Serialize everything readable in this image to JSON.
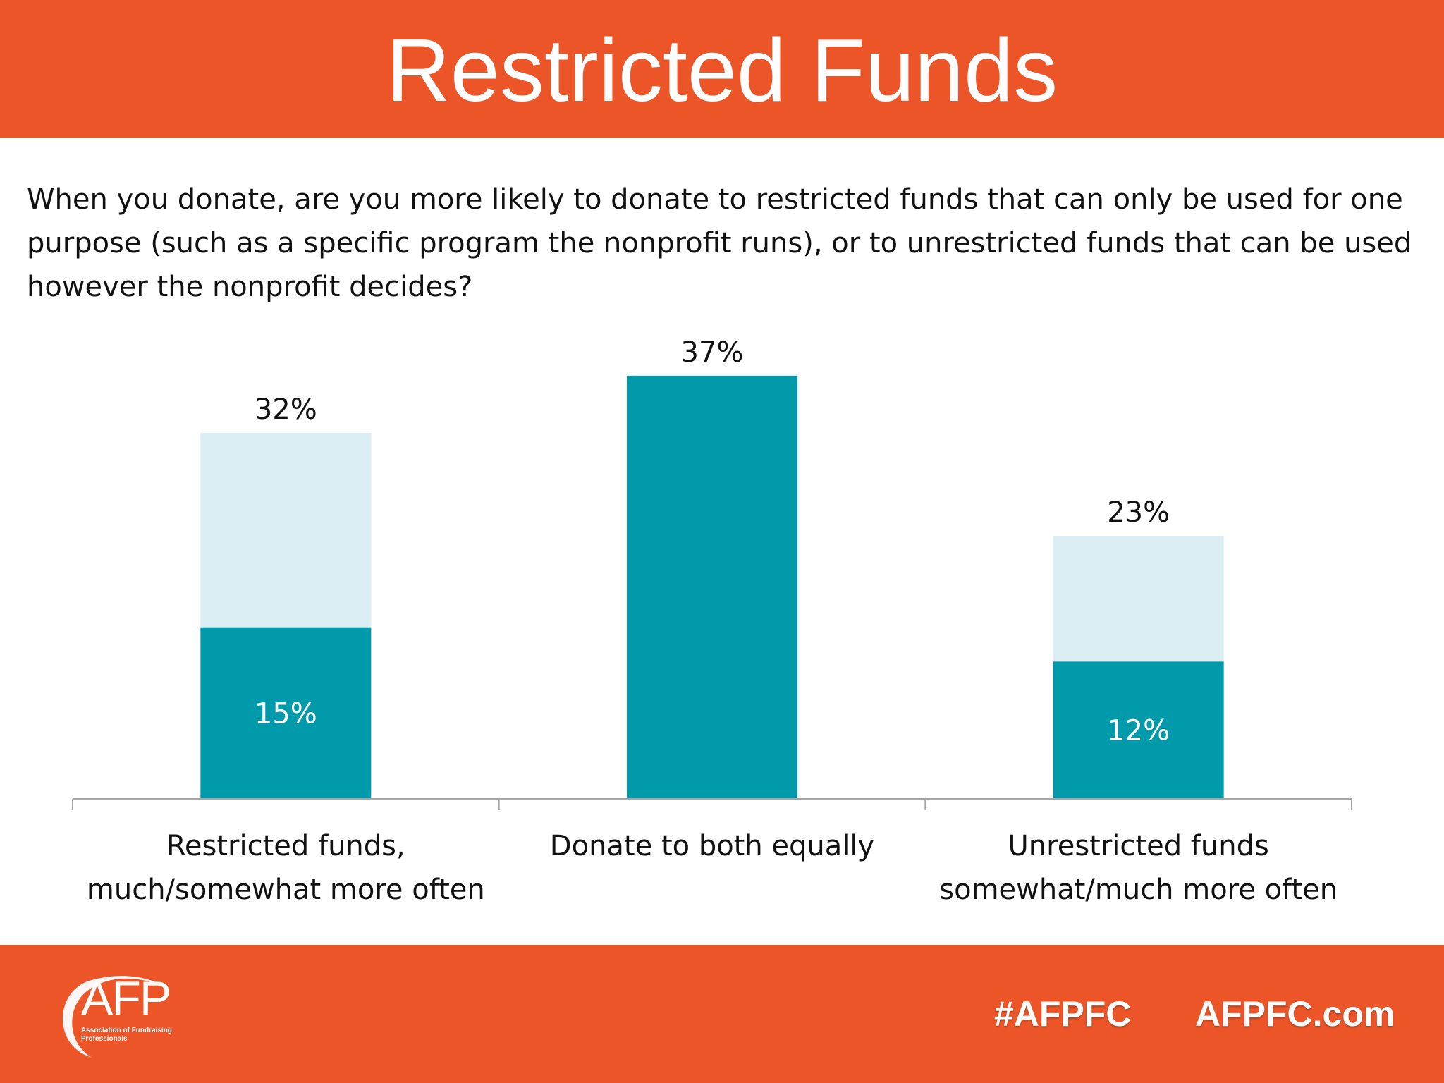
{
  "slide": {
    "title": "Restricted Funds",
    "question": "When you donate, are you more likely to donate to restricted funds that can only be used for one purpose (such as a specific program the nonprofit runs), or to unrestricted funds that can be used however the nonprofit decides?"
  },
  "footer": {
    "logo_text": "AFP",
    "logo_subtext": "Association of Fundraising Professionals",
    "hashtag": "#AFPFC",
    "website": "AFPFC.com"
  },
  "colors": {
    "header_footer": "#ec5528",
    "bar_dark": "#009aab",
    "bar_light": "#dbeef3",
    "axis": "#a6a6a6"
  },
  "chart_data": {
    "type": "bar",
    "stacked": true,
    "categories": [
      "Restricted funds, much/somewhat more often",
      "Donate to both equally",
      "Unrestricted funds somewhat/much more often"
    ],
    "category_lines": [
      [
        "Restricted funds,",
        "much/somewhat more often"
      ],
      [
        "Donate to both equally"
      ],
      [
        "Unrestricted funds",
        "somewhat/much more often"
      ]
    ],
    "segment_values": [
      15,
      37,
      12
    ],
    "segment_labels": [
      "15%",
      "",
      "12%"
    ],
    "total_values": [
      32,
      37,
      23
    ],
    "total_labels": [
      "32%",
      "37%",
      "23%"
    ],
    "ylim": [
      0,
      40
    ],
    "grid": false
  }
}
